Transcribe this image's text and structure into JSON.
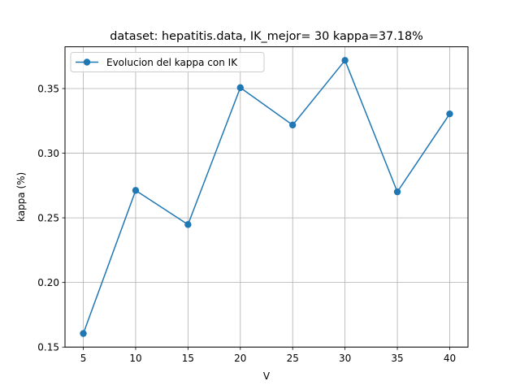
{
  "chart_data": {
    "type": "line",
    "title": "dataset: hepatitis.data, IK_mejor= 30 kappa=37.18%",
    "xlabel": "V",
    "ylabel": "kappa (%)",
    "x": [
      5,
      10,
      15,
      20,
      25,
      30,
      35,
      40
    ],
    "series": [
      {
        "name": "Evolucion del kappa con IK",
        "values": [
          0.1605,
          0.2712,
          0.2448,
          0.3507,
          0.3218,
          0.3718,
          0.2701,
          0.3304
        ],
        "color": "#1f77b4",
        "marker": "circle"
      }
    ],
    "xticks": [
      5,
      10,
      15,
      20,
      25,
      30,
      35,
      40
    ],
    "xtick_labels": [
      "5",
      "10",
      "15",
      "20",
      "25",
      "30",
      "35",
      "40"
    ],
    "yticks": [
      0.15,
      0.2,
      0.25,
      0.3,
      0.35
    ],
    "ytick_labels": [
      "0.15",
      "0.20",
      "0.25",
      "0.30",
      "0.35"
    ],
    "xlim": [
      3.25,
      41.75
    ],
    "ylim": [
      0.15,
      0.3823
    ],
    "grid": true,
    "legend_position": "upper-left"
  }
}
